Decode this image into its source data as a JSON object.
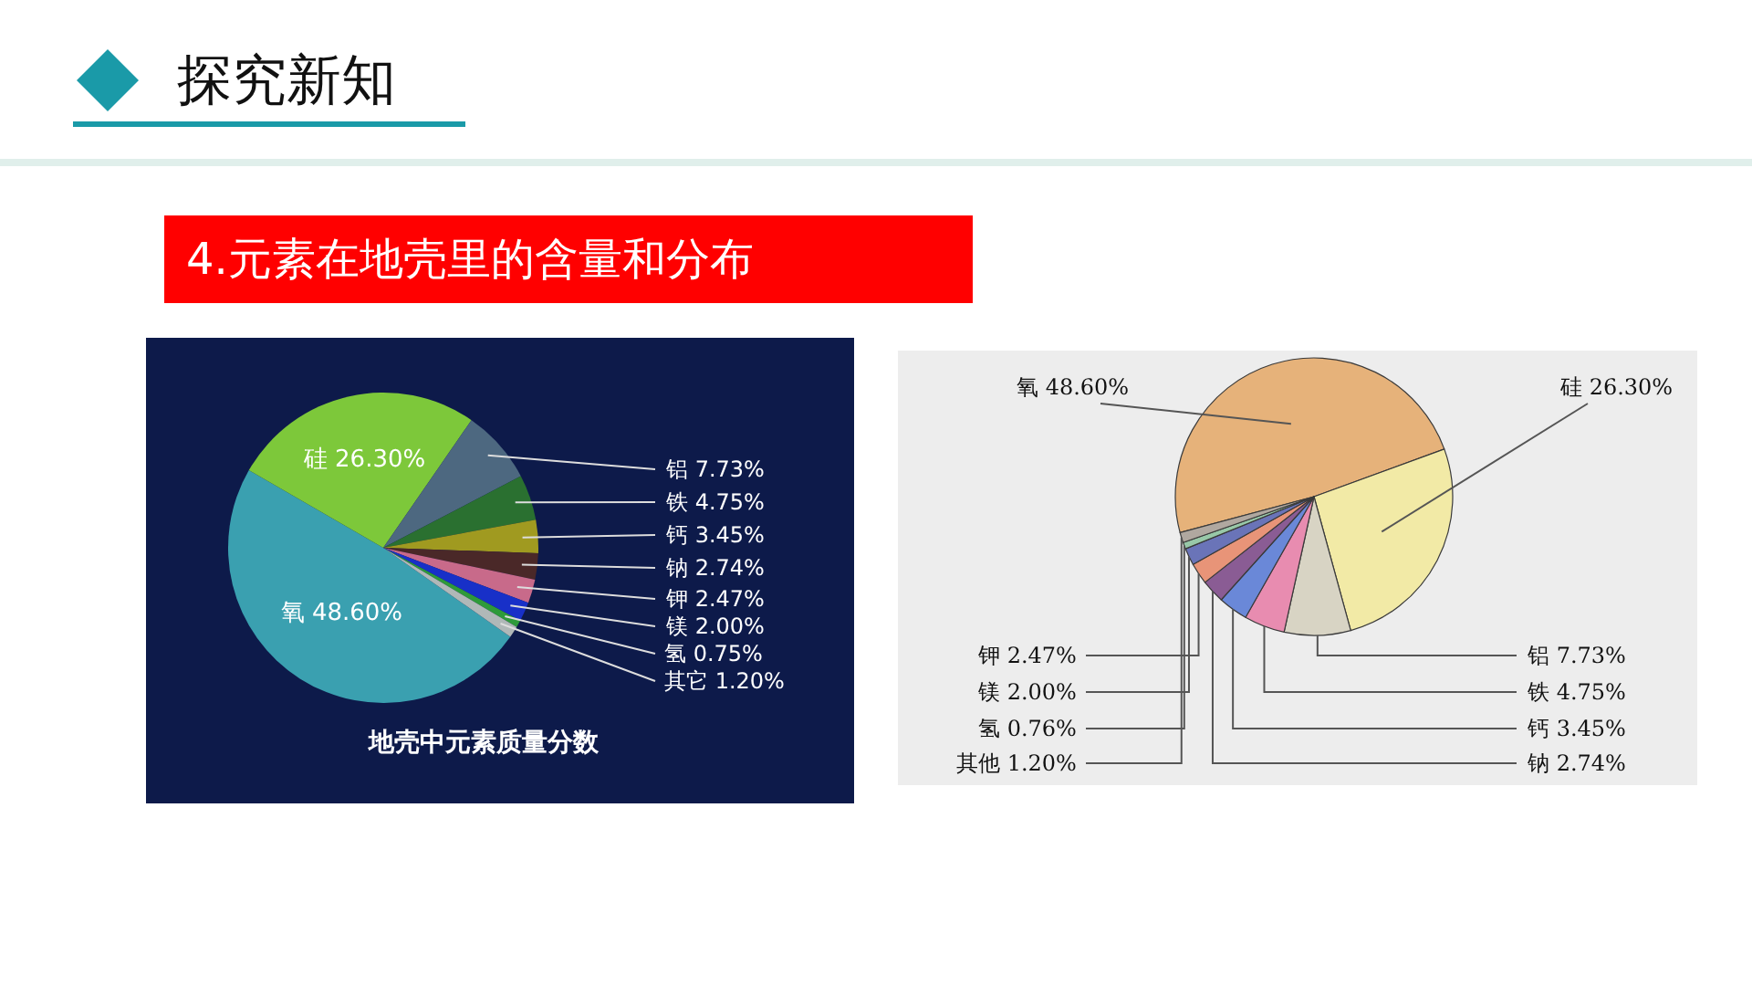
{
  "chart_data": [
    {
      "type": "pie",
      "title": "地壳中元素质量分数",
      "annotations": [
        "探究新知",
        "4.元素在地壳里的含量和分布"
      ],
      "categories": [
        "氧",
        "硅",
        "铝",
        "铁",
        "钙",
        "钠",
        "钾",
        "镁",
        "氢",
        "其它"
      ],
      "values": [
        48.6,
        26.3,
        7.73,
        4.75,
        3.45,
        2.74,
        2.47,
        2.0,
        0.75,
        1.2
      ],
      "value_labels": [
        "48.60%",
        "26.30%",
        "7.73%",
        "4.75%",
        "3.45%",
        "2.74%",
        "2.47%",
        "2.00%",
        "0.75%",
        "1.20%"
      ],
      "colors": [
        "#3aa0b0",
        "#7dc83a",
        "#4d6880",
        "#2a7030",
        "#a09a20",
        "#4a2828",
        "#c86a8a",
        "#1830c8",
        "#2e9a3a",
        "#b0b8b8"
      ]
    },
    {
      "type": "pie",
      "categories": [
        "氧",
        "硅",
        "铝",
        "铁",
        "钙",
        "钠",
        "钾",
        "镁",
        "氢",
        "其他"
      ],
      "values": [
        48.6,
        26.3,
        7.73,
        4.75,
        3.45,
        2.74,
        2.47,
        2.0,
        0.76,
        1.2
      ],
      "value_labels": [
        "48.60%",
        "26.30%",
        "7.73%",
        "4.75%",
        "3.45%",
        "2.74%",
        "2.47%",
        "2.00%",
        "0.76%",
        "1.20%"
      ],
      "colors": [
        "#e6b27a",
        "#f2eaa6",
        "#d8d4c4",
        "#e88cb0",
        "#6a88d8",
        "#8a5c94",
        "#e89478",
        "#6a74b8",
        "#98c8a8",
        "#b0a8a0"
      ]
    }
  ]
}
